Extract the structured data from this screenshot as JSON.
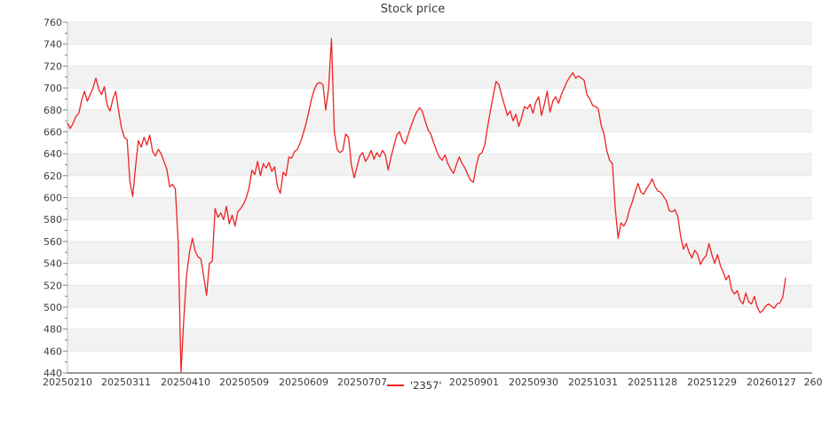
{
  "chart_data": {
    "type": "line",
    "title": "Stock price",
    "legend": {
      "label": "'2357'",
      "position": "bottom-center-inline-with-x-axis"
    },
    "series": [
      {
        "name": "'2357'",
        "color": "#ee2222",
        "values": [
          668,
          663,
          668,
          674,
          677,
          689,
          697,
          688,
          694,
          700,
          709,
          699,
          694,
          701,
          684,
          679,
          690,
          697,
          679,
          664,
          655,
          653,
          615,
          601,
          628,
          652,
          646,
          655,
          648,
          657,
          642,
          638,
          644,
          640,
          633,
          626,
          610,
          612,
          608,
          560,
          441,
          490,
          530,
          550,
          563,
          551,
          546,
          544,
          528,
          511,
          540,
          542,
          590,
          582,
          586,
          580,
          592,
          576,
          584,
          574,
          587,
          590,
          594,
          600,
          609,
          625,
          621,
          633,
          620,
          631,
          627,
          632,
          624,
          628,
          610,
          604,
          623,
          620,
          637,
          636,
          642,
          644,
          650,
          658,
          667,
          678,
          690,
          699,
          704,
          705,
          703,
          680,
          700,
          745,
          660,
          644,
          641,
          643,
          658,
          655,
          630,
          618,
          628,
          638,
          641,
          633,
          637,
          643,
          635,
          641,
          637,
          643,
          639,
          625,
          637,
          647,
          657,
          660,
          652,
          649,
          657,
          665,
          672,
          678,
          682,
          679,
          670,
          662,
          658,
          650,
          643,
          637,
          634,
          639,
          631,
          626,
          622,
          630,
          637,
          631,
          627,
          621,
          616,
          614,
          629,
          639,
          641,
          648,
          664,
          679,
          693,
          706,
          703,
          693,
          684,
          675,
          679,
          670,
          676,
          665,
          673,
          683,
          681,
          685,
          677,
          687,
          692,
          675,
          685,
          697,
          678,
          688,
          692,
          686,
          694,
          700,
          706,
          710,
          714,
          709,
          711,
          709,
          707,
          694,
          690,
          684,
          683,
          681,
          666,
          658,
          643,
          634,
          631,
          590,
          563,
          577,
          574,
          579,
          589,
          596,
          605,
          613,
          605,
          603,
          608,
          612,
          617,
          610,
          606,
          605,
          601,
          597,
          588,
          587,
          589,
          583,
          565,
          553,
          558,
          550,
          545,
          552,
          548,
          539,
          544,
          547,
          558,
          548,
          540,
          548,
          538,
          532,
          525,
          529,
          516,
          512,
          515,
          506,
          503,
          513,
          505,
          503,
          510,
          500,
          495,
          497,
          501,
          503,
          501,
          499,
          503,
          504,
          509,
          527
        ]
      }
    ],
    "x_tick_labels": [
      "20250210",
      "20250311",
      "20250410",
      "20250509",
      "20250609",
      "20250707",
      "20250901",
      "20250930",
      "20251031",
      "20251128",
      "20251229",
      "20260127",
      "260"
    ],
    "y_tick_labels": [
      "760",
      "740",
      "720",
      "700",
      "680",
      "660",
      "640",
      "620",
      "600",
      "580",
      "560",
      "540",
      "520",
      "500",
      "480",
      "460",
      "440"
    ],
    "ylim": [
      440,
      760
    ],
    "y_tick_step": 20,
    "y_minor_tick_step": 10,
    "xlabel": "",
    "ylabel": "",
    "grid": "horizontal-bands",
    "band_color_dark": "#f2f2f2",
    "band_color_light": "#ffffff",
    "gridline_color": "#e7e7e7",
    "axis_spine_color": "#bdbdbd",
    "bottom_spine_color": "#5e5e5e",
    "tick_label_color": "#3d3d3d",
    "legend_inserted_after_label": "20250707"
  }
}
